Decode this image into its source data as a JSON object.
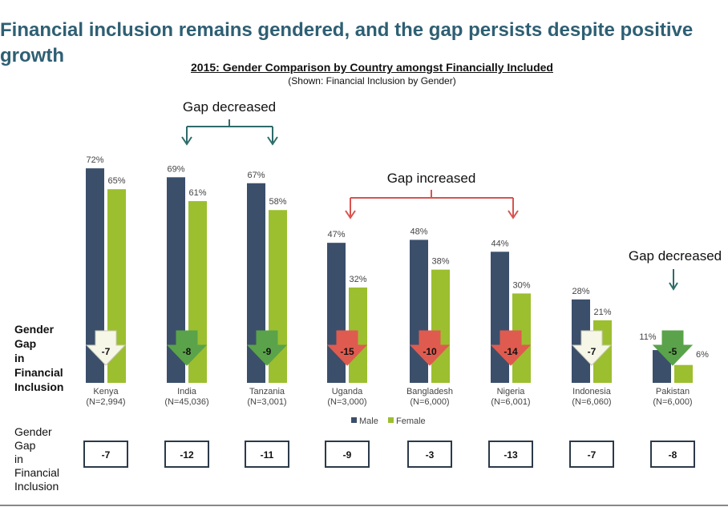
{
  "headline": "Financial inclusion remains gendered, and the gap persists despite positive growth",
  "chart_data": {
    "type": "bar",
    "title": "2015: Gender Comparison by Country amongst Financially Included",
    "subtitle": "(Shown: Financial Inclusion by Gender)",
    "categories": [
      "Kenya",
      "India",
      "Tanzania",
      "Uganda",
      "Bangladesh",
      "Nigeria",
      "Indonesia",
      "Pakistan"
    ],
    "sample_sizes": [
      "(N=2,994)",
      "(N=45,036)",
      "(N=3,001)",
      "(N=3,000)",
      "(N=6,000)",
      "(N=6,001)",
      "(N=6,060)",
      "(N=6,000)"
    ],
    "series": [
      {
        "name": "Male",
        "color": "#3b4f6b",
        "values": [
          72,
          69,
          67,
          47,
          48,
          44,
          28,
          11
        ],
        "labels": [
          "72%",
          "69%",
          "67%",
          "47%",
          "48%",
          "44%",
          "28%",
          "11%"
        ]
      },
      {
        "name": "Female",
        "color": "#9cbf2f",
        "values": [
          65,
          61,
          58,
          32,
          38,
          30,
          21,
          6
        ],
        "labels": [
          "65%",
          "61%",
          "58%",
          "32%",
          "38%",
          "30%",
          "21%",
          "6%"
        ]
      }
    ],
    "ylim": [
      0,
      80
    ],
    "grid": false,
    "legend": "bottom-center",
    "gap_2015": {
      "label": "Gender Gap in Financial Inclusion (2015)",
      "values": [
        "-7",
        "-8",
        "-9",
        "-15",
        "-10",
        "-14",
        "-7",
        "-5"
      ],
      "arrow_status": [
        "neutral",
        "decreased",
        "decreased",
        "increased",
        "increased",
        "increased",
        "neutral",
        "decreased"
      ]
    },
    "gap_2014": {
      "label": "Gender Gap in Financial Inclusion (2014)",
      "values": [
        "-7",
        "-12",
        "-11",
        "-9",
        "-3",
        "-13",
        "-7",
        "-8"
      ]
    },
    "annotations": [
      {
        "text": "Gap decreased",
        "color": "#2e6b6b",
        "countries": [
          "India",
          "Tanzania"
        ]
      },
      {
        "text": "Gap increased",
        "color": "#d9534f",
        "countries": [
          "Uganda",
          "Nigeria"
        ]
      },
      {
        "text": "Gap decreased",
        "color": "#2e6b6b",
        "countries": [
          "Pakistan"
        ]
      }
    ],
    "status_colors": {
      "neutral": "#f7f7e8",
      "decreased": "#5aa34a",
      "increased": "#e05b4f"
    }
  }
}
